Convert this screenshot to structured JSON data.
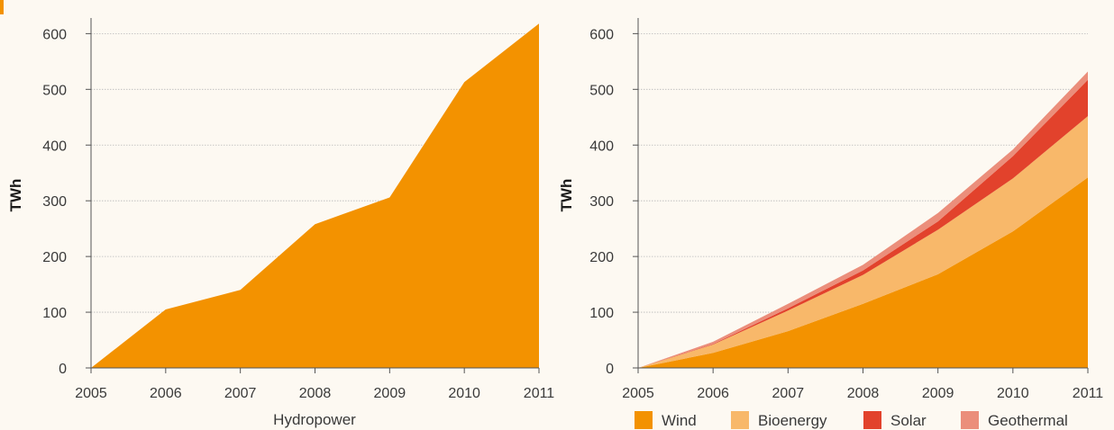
{
  "colors": {
    "hydro": "#f39200",
    "wind": "#f39200",
    "bioenergy": "#f8b86a",
    "solar": "#e2422c",
    "geothermal": "#eb8e7b",
    "grid": "#b9b9b9",
    "axis": "#555555"
  },
  "chart_data": [
    {
      "type": "area",
      "x": [
        "2005",
        "2006",
        "2007",
        "2008",
        "2009",
        "2010",
        "2011"
      ],
      "ylim": [
        0,
        620
      ],
      "yticks": [
        "0",
        "100",
        "200",
        "300",
        "400",
        "500",
        "600"
      ],
      "ylabel": "TWh",
      "xlabel": "Hydropower",
      "series": [
        {
          "key": "hydro",
          "values": [
            0,
            105,
            140,
            258,
            306,
            513,
            618
          ]
        }
      ],
      "grid": true
    },
    {
      "type": "area",
      "stacked": true,
      "x": [
        "2005",
        "2006",
        "2007",
        "2008",
        "2009",
        "2010",
        "2011"
      ],
      "ylim": [
        0,
        620
      ],
      "yticks": [
        "0",
        "100",
        "200",
        "300",
        "400",
        "500",
        "600"
      ],
      "ylabel": "TWh",
      "xlabel": "",
      "legend_position": "bottom",
      "series": [
        {
          "key": "wind",
          "name": "Wind",
          "values": [
            0,
            27,
            66,
            115,
            168,
            245,
            342
          ]
        },
        {
          "key": "bioenergy",
          "name": "Bioenergy",
          "values": [
            0,
            15,
            37,
            52,
            80,
            95,
            110
          ]
        },
        {
          "key": "solar",
          "name": "Solar",
          "values": [
            0,
            1,
            4,
            8,
            15,
            40,
            65
          ]
        },
        {
          "key": "geothermal",
          "name": "Geothermal",
          "values": [
            0,
            4,
            8,
            10,
            15,
            12,
            15
          ]
        }
      ],
      "grid": true
    }
  ]
}
